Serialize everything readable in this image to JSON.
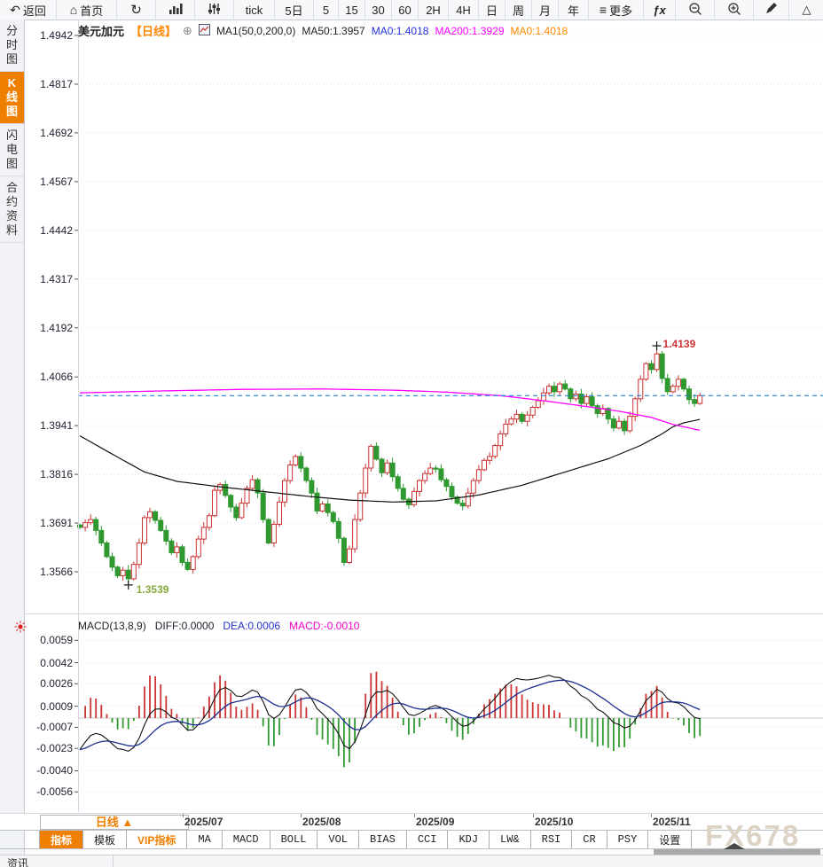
{
  "toolbar": {
    "items": [
      {
        "id": "back",
        "label": "返回",
        "icon": "back-arrow"
      },
      {
        "id": "home",
        "label": "首页",
        "icon": "home"
      },
      {
        "id": "refresh",
        "label": "",
        "icon": "refresh"
      },
      {
        "id": "bar-chart",
        "label": "",
        "icon": "bar-chart"
      },
      {
        "id": "sliders",
        "label": "",
        "icon": "sliders"
      },
      {
        "id": "tick",
        "label": "tick",
        "icon": ""
      },
      {
        "id": "5d",
        "label": "5日",
        "icon": ""
      },
      {
        "id": "m5",
        "label": "5",
        "icon": ""
      },
      {
        "id": "m15",
        "label": "15",
        "icon": ""
      },
      {
        "id": "m30",
        "label": "30",
        "icon": ""
      },
      {
        "id": "m60",
        "label": "60",
        "icon": ""
      },
      {
        "id": "h2",
        "label": "2H",
        "icon": ""
      },
      {
        "id": "h4",
        "label": "4H",
        "icon": ""
      },
      {
        "id": "day",
        "label": "日",
        "icon": ""
      },
      {
        "id": "week",
        "label": "周",
        "icon": ""
      },
      {
        "id": "month",
        "label": "月",
        "icon": ""
      },
      {
        "id": "year",
        "label": "年",
        "icon": ""
      },
      {
        "id": "more",
        "label": "更多",
        "icon": "menu"
      },
      {
        "id": "fx",
        "label": "ƒx",
        "icon": ""
      },
      {
        "id": "zoom-out",
        "label": "",
        "icon": "zoom-out"
      },
      {
        "id": "zoom-in",
        "label": "",
        "icon": "zoom-in"
      },
      {
        "id": "draw",
        "label": "",
        "icon": "pencil"
      },
      {
        "id": "shape",
        "label": "△",
        "icon": ""
      }
    ]
  },
  "sidebar": {
    "items": [
      {
        "id": "time-share",
        "label": "分时图",
        "selected": false
      },
      {
        "id": "kline",
        "label": "K线图",
        "selected": true
      },
      {
        "id": "lightning",
        "label": "闪电图",
        "selected": false
      },
      {
        "id": "contract-info",
        "label": "合约资料",
        "selected": false
      }
    ]
  },
  "chart_header": {
    "symbol": "美元加元",
    "period_tag": "【日线】",
    "ma_param_label": "MA1(50,0,200,0)",
    "ma50_label": "MA50:1.3957",
    "ma0_blue_label": "MA0:1.4018",
    "ma200_label": "MA200:1.3929",
    "ma0_orange_label": "MA0:1.4018"
  },
  "macd_header": {
    "title": "MACD(13,8,9)",
    "diff_label": "DIFF:0.0000",
    "dea_label": "DEA:0.0006",
    "macd_label": "MACD:-0.0010"
  },
  "bottom": {
    "period_button": "日线 ▲",
    "tabs": [
      {
        "id": "indicator",
        "label": "指标",
        "cjk": true,
        "selected": true
      },
      {
        "id": "template",
        "label": "模板",
        "cjk": true
      },
      {
        "id": "vip",
        "label": "VIP指标",
        "cjk": true,
        "accent": true
      },
      {
        "id": "ma",
        "label": "MA"
      },
      {
        "id": "macd",
        "label": "MACD"
      },
      {
        "id": "boll",
        "label": "BOLL"
      },
      {
        "id": "vol",
        "label": "VOL"
      },
      {
        "id": "bias",
        "label": "BIAS"
      },
      {
        "id": "cci",
        "label": "CCI"
      },
      {
        "id": "kdj",
        "label": "KDJ"
      },
      {
        "id": "lw",
        "label": "LW&"
      },
      {
        "id": "rsi",
        "label": "RSI"
      },
      {
        "id": "cr",
        "label": "CR"
      },
      {
        "id": "psy",
        "label": "PSY"
      },
      {
        "id": "settings",
        "label": "设置",
        "cjk": true
      }
    ],
    "news_label": "资讯"
  },
  "watermark": "FX678",
  "colors": {
    "accent": "#ef7f00",
    "candle_up": "#cc3333",
    "candle_down": "#2f9930",
    "ma50": "#111111",
    "ma200": "#ff00ff",
    "price_line": "#2080e0",
    "diff_line": "#111111",
    "dea_line": "#1b2f8e",
    "hist_up": "#cc3333",
    "hist_down": "#2f9930",
    "annotation_high": "#cc3333",
    "annotation_low": "#86a93c",
    "grid": "#dcdcdc"
  },
  "chart_data": {
    "type": "candlestick",
    "title": "美元加元 日线 (USD/CAD daily with MA50/MA200 and MACD)",
    "main": {
      "y_ticks": [
        1.4942,
        1.4817,
        1.4692,
        1.4567,
        1.4442,
        1.4317,
        1.4192,
        1.4066,
        1.3941,
        1.3816,
        1.3691,
        1.3566
      ],
      "x_labels": [
        {
          "label": "2025/07",
          "index": 19
        },
        {
          "label": "2025/08",
          "index": 41
        },
        {
          "label": "2025/09",
          "index": 62
        },
        {
          "label": "2025/10",
          "index": 84
        },
        {
          "label": "2025/11",
          "index": 106
        }
      ],
      "closes": [
        1.368,
        1.3692,
        1.37,
        1.3672,
        1.364,
        1.3605,
        1.3578,
        1.3556,
        1.357,
        1.3548,
        1.3585,
        1.364,
        1.3705,
        1.372,
        1.3698,
        1.3672,
        1.3645,
        1.3615,
        1.363,
        1.359,
        1.3572,
        1.3605,
        1.365,
        1.368,
        1.371,
        1.3775,
        1.379,
        1.3762,
        1.3732,
        1.3705,
        1.3742,
        1.378,
        1.3802,
        1.3768,
        1.37,
        1.364,
        1.3688,
        1.3745,
        1.38,
        1.384,
        1.3862,
        1.3832,
        1.38,
        1.3768,
        1.3722,
        1.374,
        1.3718,
        1.3695,
        1.3652,
        1.359,
        1.3625,
        1.37,
        1.3768,
        1.3832,
        1.3888,
        1.3855,
        1.382,
        1.3845,
        1.381,
        1.378,
        1.3752,
        1.3738,
        1.3772,
        1.38,
        1.3818,
        1.3832,
        1.383,
        1.3802,
        1.3785,
        1.3758,
        1.3742,
        1.3735,
        1.3768,
        1.38,
        1.3828,
        1.3852,
        1.3862,
        1.389,
        1.392,
        1.3945,
        1.3958,
        1.397,
        1.3952,
        1.3968,
        1.3988,
        1.4005,
        1.4025,
        1.4042,
        1.4028,
        1.4048,
        1.4035,
        1.401,
        1.4022,
        1.3998,
        1.4015,
        1.3992,
        1.3972,
        1.3985,
        1.3958,
        1.3935,
        1.3952,
        1.3928,
        1.3965,
        1.401,
        1.406,
        1.41,
        1.4085,
        1.4125,
        1.4062,
        1.4028,
        1.4042,
        1.406,
        1.4035,
        1.4008,
        1.3998,
        1.4018
      ],
      "high_annotation": {
        "index": 107,
        "price": 1.4139,
        "label": "1.4139"
      },
      "low_annotation": {
        "index": 9,
        "price": 1.3539,
        "label": "1.3539"
      },
      "current_price": 1.4018,
      "ma50_points": [
        [
          0,
          1.3915
        ],
        [
          6,
          1.3868
        ],
        [
          12,
          1.3822
        ],
        [
          18,
          1.3798
        ],
        [
          26,
          1.3784
        ],
        [
          34,
          1.3772
        ],
        [
          42,
          1.376
        ],
        [
          50,
          1.375
        ],
        [
          58,
          1.3745
        ],
        [
          66,
          1.3748
        ],
        [
          74,
          1.3763
        ],
        [
          82,
          1.3788
        ],
        [
          90,
          1.3822
        ],
        [
          98,
          1.3856
        ],
        [
          104,
          1.389
        ],
        [
          108,
          1.392
        ],
        [
          110,
          1.3938
        ],
        [
          112,
          1.3948
        ],
        [
          115,
          1.3957
        ]
      ],
      "ma200_points": [
        [
          0,
          1.4025
        ],
        [
          15,
          1.403
        ],
        [
          30,
          1.4034
        ],
        [
          45,
          1.4035
        ],
        [
          58,
          1.4032
        ],
        [
          68,
          1.4027
        ],
        [
          78,
          1.4018
        ],
        [
          86,
          1.4005
        ],
        [
          94,
          1.399
        ],
        [
          100,
          1.3978
        ],
        [
          106,
          1.3962
        ],
        [
          110,
          1.3944
        ],
        [
          115,
          1.3929
        ]
      ]
    },
    "macd": {
      "y_ticks": [
        0.0059,
        0.0042,
        0.0026,
        0.0009,
        -0.0007,
        -0.0023,
        -0.004,
        -0.0056
      ],
      "ema_short_period": 8,
      "ema_long_period": 13,
      "signal_period": 9,
      "seed": {
        "ema_short": 1.3658,
        "ema_long": 1.3688,
        "dea": -0.0024
      },
      "diff_last": 0.0,
      "dea_last": 0.0006,
      "macd_last": -0.001
    }
  }
}
